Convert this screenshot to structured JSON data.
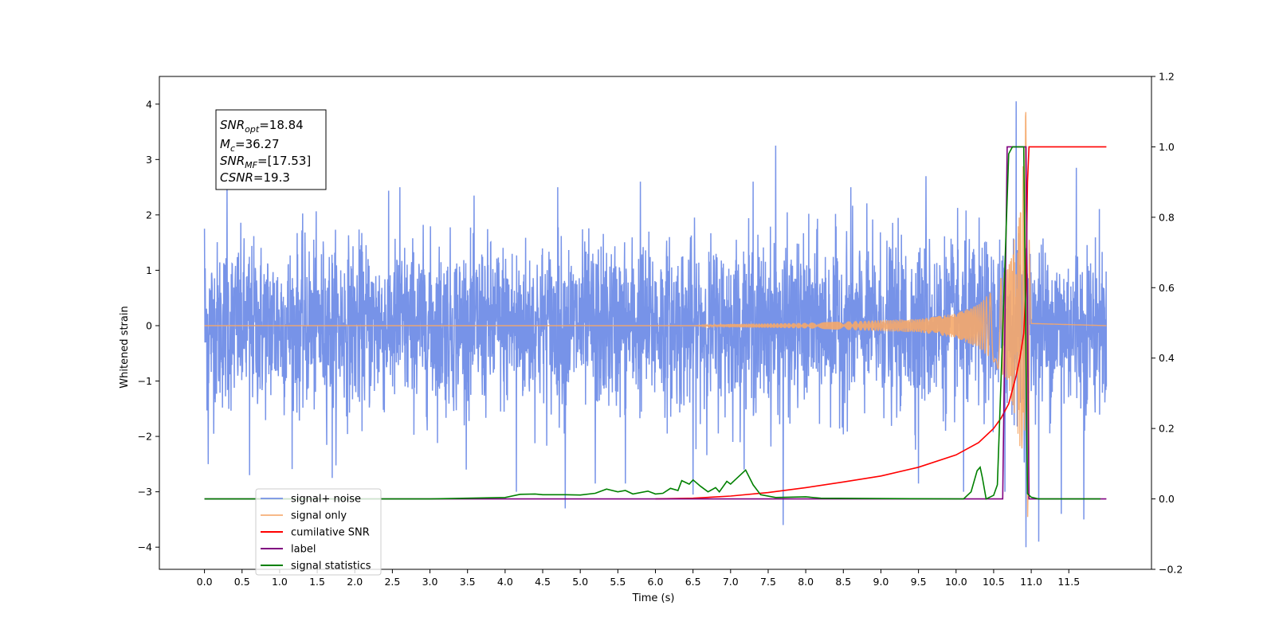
{
  "chart_data": {
    "type": "line",
    "xlabel": "Time (s)",
    "ylabel": "Whitened strain",
    "xlim": [
      -0.6,
      12.6
    ],
    "ylim": [
      -4.4,
      4.5
    ],
    "ylim_right": [
      -0.2,
      1.2
    ],
    "x_ticks": [
      "0.0",
      "0.5",
      "1.0",
      "1.5",
      "2.0",
      "2.5",
      "3.0",
      "3.5",
      "4.0",
      "4.5",
      "5.0",
      "5.5",
      "6.0",
      "6.5",
      "7.0",
      "7.5",
      "8.0",
      "8.5",
      "9.0",
      "9.5",
      "10.0",
      "10.5",
      "11.0",
      "11.5"
    ],
    "y_ticks": [
      "−4",
      "−3",
      "−2",
      "−1",
      "0",
      "1",
      "2",
      "3",
      "4"
    ],
    "y_ticks_right": [
      "−0.2",
      "0.0",
      "0.2",
      "0.4",
      "0.6",
      "0.8",
      "1.0",
      "1.2"
    ],
    "legend_placement": "lower-left",
    "annotation": {
      "line1_main": "SNR",
      "line1_sub": "opt",
      "line1_value": "=18.84",
      "line2_main": "M",
      "line2_sub": "c",
      "line2_value": "=36.27",
      "line3_main": "SNR",
      "line3_sub": "MF",
      "line3_value": "=[17.53]",
      "line4_main": "CSNR",
      "line4_value": "=19.3"
    },
    "series": [
      {
        "name": "signal+ noise",
        "axis": "left",
        "color": "#6b8ae6",
        "noise_amplitude_typical": 1.2,
        "t_start": 0.0,
        "t_end": 12.0,
        "peaks": [
          [
            0.0,
            1.75
          ],
          [
            0.3,
            2.6
          ],
          [
            0.6,
            2.5
          ],
          [
            1.7,
            2.6
          ],
          [
            2.6,
            2.5
          ],
          [
            4.7,
            2.5
          ],
          [
            5.2,
            2.5
          ],
          [
            5.8,
            2.6
          ],
          [
            6.5,
            2.5
          ],
          [
            7.3,
            2.6
          ],
          [
            7.6,
            3.25
          ],
          [
            8.6,
            2.5
          ],
          [
            9.6,
            2.7
          ],
          [
            10.8,
            4.05
          ],
          [
            10.93,
            4.15
          ],
          [
            11.6,
            2.85
          ],
          [
            12.0,
            1.2
          ]
        ],
        "troughs": [
          [
            0.05,
            -2.5
          ],
          [
            0.6,
            -2.7
          ],
          [
            1.7,
            -2.75
          ],
          [
            4.15,
            -3.0
          ],
          [
            4.8,
            -3.3
          ],
          [
            5.2,
            -2.85
          ],
          [
            5.6,
            -2.85
          ],
          [
            6.5,
            -3.05
          ],
          [
            7.7,
            -3.6
          ],
          [
            9.5,
            -2.85
          ],
          [
            10.1,
            -3.0
          ],
          [
            10.65,
            -3.0
          ],
          [
            10.93,
            -4.0
          ],
          [
            11.1,
            -3.9
          ],
          [
            11.4,
            -3.4
          ],
          [
            11.7,
            -3.5
          ],
          [
            12.0,
            -1.1
          ]
        ]
      },
      {
        "name": "signal only",
        "axis": "left",
        "color": "#f5a86a",
        "points": [
          [
            0.0,
            0.0
          ],
          [
            6.5,
            0.0
          ],
          [
            7.0,
            0.03
          ],
          [
            8.0,
            0.05
          ],
          [
            9.0,
            0.1
          ],
          [
            9.5,
            0.12
          ],
          [
            10.0,
            0.22
          ],
          [
            10.3,
            0.4
          ],
          [
            10.5,
            0.65
          ],
          [
            10.7,
            1.1
          ],
          [
            10.85,
            2.2
          ],
          [
            10.93,
            3.9
          ],
          [
            10.95,
            -3.6
          ],
          [
            11.0,
            0.05
          ],
          [
            12.0,
            0.0
          ]
        ]
      },
      {
        "name": "cumilative SNR",
        "axis": "right",
        "color": "#ff0000",
        "points": [
          [
            6.0,
            0.0
          ],
          [
            6.5,
            0.002
          ],
          [
            7.0,
            0.008
          ],
          [
            7.5,
            0.018
          ],
          [
            8.0,
            0.032
          ],
          [
            8.5,
            0.048
          ],
          [
            9.0,
            0.065
          ],
          [
            9.5,
            0.09
          ],
          [
            10.0,
            0.125
          ],
          [
            10.3,
            0.16
          ],
          [
            10.5,
            0.2
          ],
          [
            10.6,
            0.23
          ],
          [
            10.7,
            0.27
          ],
          [
            10.8,
            0.35
          ],
          [
            10.85,
            0.4
          ],
          [
            10.9,
            0.47
          ],
          [
            10.93,
            0.6
          ],
          [
            10.95,
            0.9
          ],
          [
            10.97,
            1.0
          ],
          [
            12.0,
            1.0
          ]
        ]
      },
      {
        "name": "label",
        "axis": "right",
        "color": "#800080",
        "points": [
          [
            0.0,
            0.0
          ],
          [
            10.6,
            0.0
          ],
          [
            10.62,
            0.0
          ],
          [
            10.68,
            1.0
          ],
          [
            10.9,
            1.0
          ],
          [
            10.93,
            1.0
          ],
          [
            10.97,
            0.0
          ],
          [
            12.0,
            0.0
          ]
        ]
      },
      {
        "name": "signal statistics",
        "axis": "right",
        "color": "#008000",
        "points": [
          [
            0.0,
            0.0
          ],
          [
            3.0,
            0.0
          ],
          [
            3.5,
            0.002
          ],
          [
            4.0,
            0.004
          ],
          [
            4.2,
            0.013
          ],
          [
            4.4,
            0.014
          ],
          [
            4.5,
            0.012
          ],
          [
            4.8,
            0.012
          ],
          [
            5.0,
            0.011
          ],
          [
            5.2,
            0.016
          ],
          [
            5.35,
            0.028
          ],
          [
            5.5,
            0.02
          ],
          [
            5.6,
            0.024
          ],
          [
            5.7,
            0.014
          ],
          [
            5.9,
            0.022
          ],
          [
            6.0,
            0.014
          ],
          [
            6.1,
            0.016
          ],
          [
            6.2,
            0.03
          ],
          [
            6.3,
            0.024
          ],
          [
            6.35,
            0.052
          ],
          [
            6.45,
            0.042
          ],
          [
            6.5,
            0.054
          ],
          [
            6.6,
            0.036
          ],
          [
            6.7,
            0.02
          ],
          [
            6.8,
            0.032
          ],
          [
            6.85,
            0.02
          ],
          [
            6.95,
            0.05
          ],
          [
            7.0,
            0.042
          ],
          [
            7.05,
            0.052
          ],
          [
            7.1,
            0.062
          ],
          [
            7.2,
            0.082
          ],
          [
            7.3,
            0.04
          ],
          [
            7.4,
            0.012
          ],
          [
            7.6,
            0.004
          ],
          [
            8.0,
            0.006
          ],
          [
            8.2,
            0.002
          ],
          [
            10.1,
            0.0
          ],
          [
            10.2,
            0.02
          ],
          [
            10.28,
            0.08
          ],
          [
            10.32,
            0.09
          ],
          [
            10.35,
            0.06
          ],
          [
            10.4,
            0.0
          ],
          [
            10.5,
            0.01
          ],
          [
            10.55,
            0.04
          ],
          [
            10.6,
            0.35
          ],
          [
            10.7,
            0.98
          ],
          [
            10.75,
            1.0
          ],
          [
            10.9,
            1.0
          ],
          [
            10.95,
            0.015
          ],
          [
            11.0,
            0.005
          ],
          [
            11.1,
            0.0
          ],
          [
            11.92,
            0.0
          ]
        ]
      }
    ]
  }
}
